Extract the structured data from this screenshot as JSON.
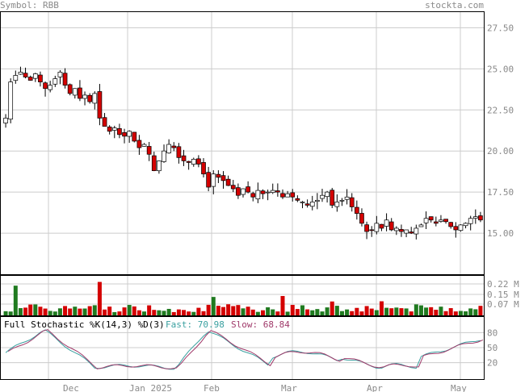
{
  "header": {
    "symbol_label": "Symbol: RBB",
    "site": "stockta.com"
  },
  "colors": {
    "up": "#ffffff",
    "down": "#d40000",
    "vol_up": "#1f7a1f",
    "vol_down": "#d40000",
    "grid": "#cccccc",
    "fast": "#3aa0a0",
    "slow": "#a03a6a",
    "text": "#8a8a8a"
  },
  "stoch_label": {
    "title": "Full Stochastic %K(14,3) %D(3)",
    "fast_label": "Fast: 70.98",
    "slow_label": "Slow: 68.84"
  },
  "chart_data": [
    {
      "type": "candlestick",
      "title": "",
      "y_ticks": [
        "27.50",
        "25.00",
        "22.50",
        "20.00",
        "17.50",
        "15.00"
      ],
      "x_ticks": [
        "Dec",
        "Jan 2025",
        "Feb",
        "Mar",
        "Apr",
        "May"
      ],
      "ylim": [
        12.5,
        28.5
      ],
      "grid": true,
      "closes": [
        22.0,
        24.2,
        24.6,
        24.8,
        24.5,
        24.3,
        24.7,
        24.2,
        23.8,
        24.0,
        24.4,
        24.8,
        24.0,
        23.5,
        23.8,
        23.2,
        23.4,
        23.0,
        23.5,
        22.0,
        21.5,
        21.2,
        21.4,
        21.0,
        20.9,
        21.2,
        20.6,
        20.2,
        20.4,
        19.8,
        18.8,
        19.4,
        20.0,
        20.4,
        20.2,
        19.6,
        19.4,
        19.3,
        19.5,
        19.2,
        18.6,
        17.8,
        18.6,
        18.4,
        18.2,
        17.9,
        17.7,
        17.3,
        17.7,
        17.5,
        17.2,
        17.6,
        17.4,
        17.5,
        17.6,
        17.5,
        17.2,
        17.4,
        17.2,
        17.0,
        16.9,
        16.7,
        16.9,
        17.0,
        17.3,
        17.5,
        16.7,
        16.9,
        17.0,
        17.2,
        16.6,
        16.2,
        15.6,
        15.1,
        15.2,
        15.6,
        15.3,
        15.8,
        15.2,
        15.3,
        15.1,
        15.2,
        15.0,
        15.3,
        15.5,
        15.9,
        15.8,
        15.6,
        15.8,
        15.7,
        15.4,
        15.2,
        15.5,
        15.6,
        15.9,
        16.0,
        15.8
      ]
    },
    {
      "type": "bar",
      "title": "",
      "y_ticks": [
        "0.22 M",
        "0.15 M",
        "0.07 M"
      ],
      "ylim": [
        0,
        0.25
      ]
    },
    {
      "type": "line",
      "title": "",
      "y_ticks": [
        "80",
        "50",
        "20"
      ],
      "ylim": [
        0,
        100
      ],
      "series": [
        {
          "name": "Fast",
          "last": 70.98
        },
        {
          "name": "Slow",
          "last": 68.84
        }
      ]
    }
  ]
}
